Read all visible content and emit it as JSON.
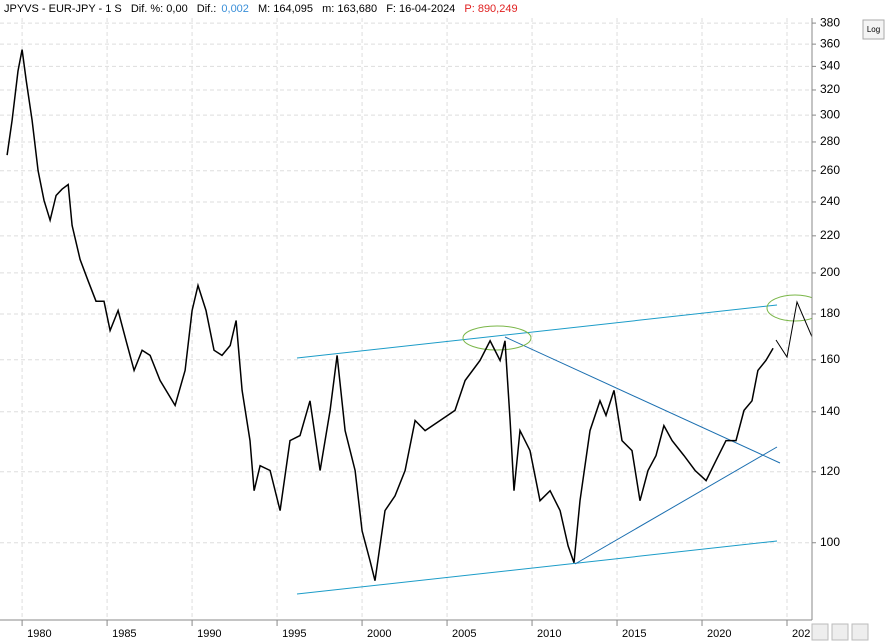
{
  "header": [
    "JPYVS - EUR-JPY - 1 S",
    "Dif. %: 0,00",
    "Dif.:",
    "0,002",
    "M: 164,095",
    "m: 163,680",
    "F: 16-04-2024",
    "P: 890,249"
  ],
  "log_button": "Log",
  "chart_data": {
    "type": "line",
    "color": "#000000",
    "log_y": true,
    "grid": true,
    "x": [
      1979.12,
      1979.41,
      1979.76,
      1980.0,
      1980.24,
      1980.59,
      1980.94,
      1981.29,
      1981.65,
      1982.0,
      1982.35,
      1982.71,
      1982.94,
      1983.41,
      1983.88,
      1984.35,
      1984.82,
      1985.18,
      1985.65,
      1986.12,
      1986.59,
      1987.06,
      1987.53,
      1988.12,
      1989.0,
      1989.59,
      1990.0,
      1990.35,
      1990.82,
      1991.29,
      1991.76,
      1992.24,
      1992.59,
      1992.94,
      1993.41,
      1993.65,
      1994.0,
      1994.59,
      1995.18,
      1995.76,
      1996.35,
      1996.94,
      1997.53,
      1998.12,
      1998.53,
      1999.0,
      1999.59,
      2000.0,
      2000.47,
      2000.76,
      2001.35,
      2001.94,
      2002.53,
      2003.12,
      2003.71,
      2004.59,
      2005.47,
      2006.06,
      2006.94,
      2007.53,
      2008.12,
      2008.41,
      2008.71,
      2008.94,
      2009.29,
      2009.88,
      2010.47,
      2011.06,
      2011.65,
      2012.12,
      2012.47,
      2012.82,
      2013.41,
      2014.0,
      2014.35,
      2014.82,
      2015.29,
      2015.88,
      2016.35,
      2016.82,
      2017.29,
      2017.76,
      2018.24,
      2018.94,
      2019.59,
      2020.24,
      2020.82,
      2021.41,
      2022.0,
      2022.47,
      2022.94,
      2023.29,
      2023.76,
      2024.18
    ],
    "values": [
      270.7,
      296,
      336,
      355,
      328,
      296,
      260,
      241,
      229,
      244,
      248,
      251,
      226,
      207,
      196,
      186,
      186,
      172.5,
      181.6,
      168,
      155.7,
      164,
      161.8,
      151.7,
      142.3,
      155.7,
      181.6,
      193.7,
      181.6,
      164,
      161.8,
      166,
      177,
      147.9,
      130,
      114.3,
      121.9,
      120.4,
      108.6,
      130,
      131.7,
      144,
      120.4,
      140.5,
      161.8,
      133.4,
      120.4,
      103.1,
      95.5,
      90.7,
      108.6,
      112.8,
      120.4,
      136.9,
      133.4,
      136.9,
      140.5,
      151.7,
      159.7,
      168,
      159.7,
      168,
      136.9,
      114.3,
      133.4,
      126.7,
      111.4,
      114.3,
      108.6,
      99.2,
      95,
      111.4,
      133.4,
      144,
      138.7,
      147.9,
      130,
      126.7,
      111.4,
      120.4,
      125.1,
      135.1,
      130,
      125.1,
      120.4,
      117.3,
      123.5,
      130,
      130,
      140.5,
      144,
      155.7,
      159.7,
      164.8
    ],
    "xlim": [
      1978.7,
      2026.47
    ],
    "xticks": [
      1980,
      1985,
      1990,
      1995,
      2000,
      2005,
      2010,
      2015,
      2020,
      {
        "value": 2025,
        "label": "202"
      }
    ],
    "ylim": [
      82,
      385
    ],
    "yticks": [
      100,
      120,
      140,
      160,
      180,
      200,
      220,
      240,
      260,
      280,
      300,
      320,
      340,
      360,
      380
    ]
  }
}
